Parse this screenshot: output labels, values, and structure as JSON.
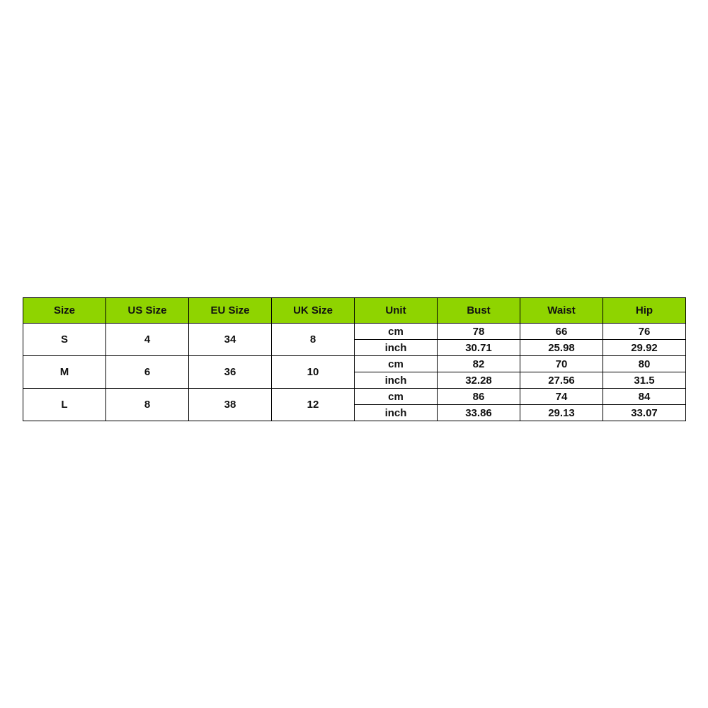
{
  "table": {
    "header": [
      "Size",
      "US Size",
      "EU Size",
      "UK Size",
      "Unit",
      "Bust",
      "Waist",
      "Hip"
    ],
    "rows": [
      {
        "size": "S",
        "us": "4",
        "eu": "34",
        "uk": "8",
        "units": [
          [
            "cm",
            "78",
            "66",
            "76"
          ],
          [
            "inch",
            "30.71",
            "25.98",
            "29.92"
          ]
        ]
      },
      {
        "size": "M",
        "us": "6",
        "eu": "36",
        "uk": "10",
        "units": [
          [
            "cm",
            "82",
            "70",
            "80"
          ],
          [
            "inch",
            "32.28",
            "27.56",
            "31.5"
          ]
        ]
      },
      {
        "size": "L",
        "us": "8",
        "eu": "38",
        "uk": "12",
        "units": [
          [
            "cm",
            "86",
            "74",
            "84"
          ],
          [
            "inch",
            "33.86",
            "29.13",
            "33.07"
          ]
        ]
      }
    ]
  }
}
